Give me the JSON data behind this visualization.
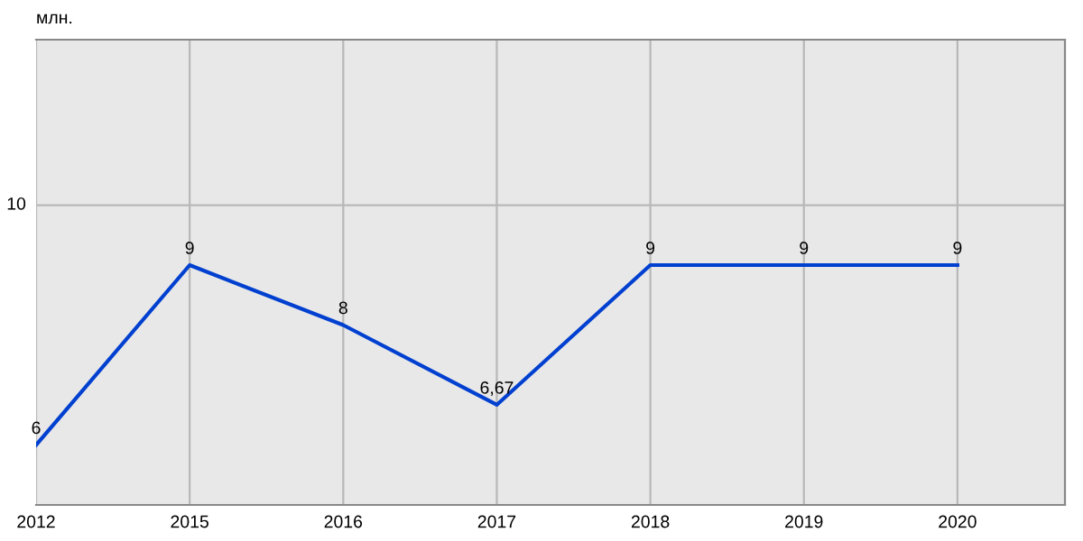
{
  "chart_data": {
    "type": "line",
    "annotations": [
      "млн."
    ],
    "categories": [
      "2012",
      "2015",
      "2016",
      "2017",
      "2018",
      "2019",
      "2020"
    ],
    "series": [
      {
        "color": "#0040d0",
        "values": [
          6,
          9,
          8,
          6.67,
          9,
          9,
          9
        ],
        "value_labels": [
          "6",
          "9",
          "8",
          "6,67",
          "9",
          "9",
          "9"
        ]
      }
    ],
    "ref_lines": [
      {
        "axis": "y",
        "value": 10,
        "label": "10",
        "color": "#b8b8b8"
      }
    ],
    "grid": "x",
    "legend": false,
    "marker": "none",
    "line_style": "solid"
  }
}
